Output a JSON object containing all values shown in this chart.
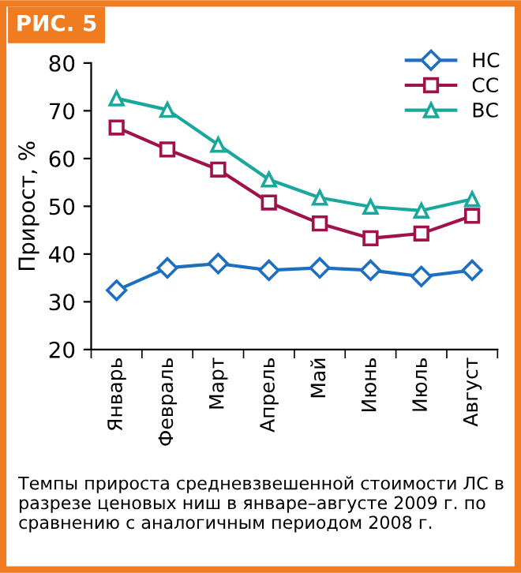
{
  "chart_data": {
    "type": "line",
    "title": "РИС. 5",
    "ylabel": "Прирост, %",
    "categories": [
      "Январь",
      "Февраль",
      "Март",
      "Апрель",
      "Май",
      "Июнь",
      "Июль",
      "Август"
    ],
    "series": [
      {
        "name": "НС",
        "color": "#1f6fc0",
        "marker": "diamond",
        "values": [
          32.4,
          37.1,
          38.0,
          36.6,
          37.1,
          36.6,
          35.3,
          36.6
        ]
      },
      {
        "name": "СС",
        "color": "#a0124a",
        "marker": "square",
        "values": [
          66.5,
          61.9,
          57.7,
          50.8,
          46.4,
          43.3,
          44.3,
          48.0
        ]
      },
      {
        "name": "ВС",
        "color": "#1aa89c",
        "marker": "triangle",
        "values": [
          72.6,
          70.2,
          62.9,
          55.6,
          51.8,
          49.9,
          49.1,
          51.5
        ]
      }
    ],
    "ylim": [
      20,
      80
    ],
    "yticks": [
      20,
      30,
      40,
      50,
      60,
      70,
      80
    ],
    "grid": false,
    "legend": "top right",
    "annotations": [
      "Темпы прироста средневзвешенной стоимости ЛС в разрезе ценовых ниш в январе–августе 2009 г. по сравнению с аналогичным периодом 2008 г."
    ]
  }
}
